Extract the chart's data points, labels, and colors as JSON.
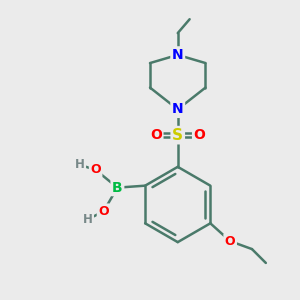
{
  "background_color": "#ebebeb",
  "bond_color": "#4a7a6a",
  "atom_colors": {
    "N": "#0000ff",
    "O": "#ff0000",
    "S": "#cccc00",
    "B": "#00bb44",
    "H": "#778888",
    "C": "#4a7a6a"
  },
  "figsize": [
    3.0,
    3.0
  ],
  "dpi": 100
}
